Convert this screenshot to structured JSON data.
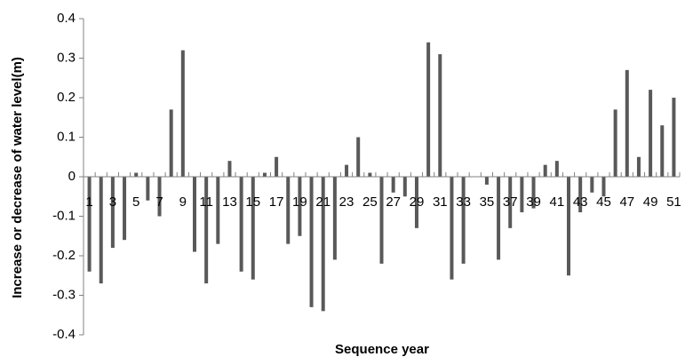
{
  "chart_data": {
    "type": "bar",
    "title": "",
    "xlabel": "Sequence year",
    "ylabel": "Increase or decrease of water level(m)",
    "ylim": [
      -0.4,
      0.4
    ],
    "yticks": [
      "0.4",
      "0.3",
      "0.2",
      "0.1",
      "0",
      "-0.1",
      "-0.2",
      "-0.3",
      "-0.4"
    ],
    "grid": false,
    "categories": [
      1,
      2,
      3,
      4,
      5,
      6,
      7,
      8,
      9,
      10,
      11,
      12,
      13,
      14,
      15,
      16,
      17,
      18,
      19,
      20,
      21,
      22,
      23,
      24,
      25,
      26,
      27,
      28,
      29,
      30,
      31,
      32,
      33,
      34,
      35,
      36,
      37,
      38,
      39,
      40,
      41,
      42,
      43,
      44,
      45,
      46,
      47,
      48,
      49,
      50,
      51
    ],
    "x_tick_labels": [
      "1",
      "3",
      "5",
      "7",
      "9",
      "11",
      "13",
      "15",
      "17",
      "19",
      "21",
      "23",
      "25",
      "27",
      "29",
      "31",
      "33",
      "35",
      "37",
      "39",
      "41",
      "43",
      "45",
      "47",
      "49",
      "51"
    ],
    "values": [
      -0.24,
      -0.27,
      -0.18,
      -0.16,
      0.01,
      -0.06,
      -0.1,
      0.17,
      0.32,
      -0.19,
      -0.27,
      -0.17,
      0.04,
      -0.24,
      -0.26,
      0.01,
      0.05,
      -0.17,
      -0.15,
      -0.33,
      -0.34,
      -0.21,
      0.03,
      0.1,
      0.01,
      -0.22,
      -0.04,
      -0.05,
      -0.13,
      0.34,
      0.31,
      -0.26,
      -0.22,
      0.0,
      -0.02,
      -0.21,
      -0.13,
      -0.09,
      -0.08,
      0.03,
      0.04,
      -0.25,
      -0.09,
      -0.04,
      -0.05,
      0.17,
      0.27,
      0.05,
      0.22,
      0.13,
      0.2
    ],
    "bar_color": "#595959"
  }
}
